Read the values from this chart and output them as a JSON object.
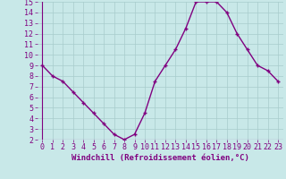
{
  "x": [
    0,
    1,
    2,
    3,
    4,
    5,
    6,
    7,
    8,
    9,
    10,
    11,
    12,
    13,
    14,
    15,
    16,
    17,
    18,
    19,
    20,
    21,
    22,
    23
  ],
  "y": [
    9,
    8,
    7.5,
    6.5,
    5.5,
    4.5,
    3.5,
    2.5,
    2,
    2.5,
    4.5,
    7.5,
    9,
    10.5,
    12.5,
    15,
    15,
    15,
    14,
    12,
    10.5,
    9,
    8.5,
    7.5
  ],
  "line_color": "#800080",
  "marker": "+",
  "bg_color": "#c8e8e8",
  "grid_color": "#a8cccc",
  "axis_label_color": "#800080",
  "tick_label_color": "#800080",
  "xlabel": "Windchill (Refroidissement éolien,°C)",
  "ylim": [
    2,
    15
  ],
  "xlim": [
    -0.5,
    23.5
  ],
  "yticks": [
    2,
    3,
    4,
    5,
    6,
    7,
    8,
    9,
    10,
    11,
    12,
    13,
    14,
    15
  ],
  "xticks": [
    0,
    1,
    2,
    3,
    4,
    5,
    6,
    7,
    8,
    9,
    10,
    11,
    12,
    13,
    14,
    15,
    16,
    17,
    18,
    19,
    20,
    21,
    22,
    23
  ],
  "font_size": 6.0,
  "label_font_size": 6.5,
  "marker_size": 3,
  "line_width": 1.0
}
